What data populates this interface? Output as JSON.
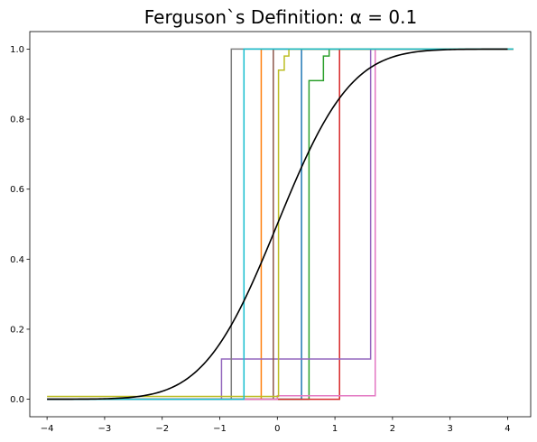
{
  "chart_data": {
    "type": "line",
    "title": "Ferguson`s Definition: α = 0.1",
    "xlabel": "",
    "ylabel": "",
    "xlim": [
      -4.3,
      4.4
    ],
    "ylim": [
      -0.05,
      1.05
    ],
    "x_ticks": [
      -4,
      -3,
      -2,
      -1,
      0,
      1,
      2,
      3,
      4
    ],
    "x_tick_labels": [
      "−4",
      "−3",
      "−2",
      "−1",
      "0",
      "1",
      "2",
      "3",
      "4"
    ],
    "y_ticks": [
      0.0,
      0.2,
      0.4,
      0.6,
      0.8,
      1.0
    ],
    "y_tick_labels": [
      "0.0",
      "0.2",
      "0.4",
      "0.6",
      "0.8",
      "1.0"
    ],
    "grid": false,
    "series": [
      {
        "color": "#1f77b4",
        "x": [
          -4,
          0.42,
          0.42,
          4.1
        ],
        "y": [
          0,
          0,
          1,
          1
        ]
      },
      {
        "color": "#ff7f0e",
        "x": [
          -4,
          -0.28,
          -0.28,
          4.1
        ],
        "y": [
          0,
          0,
          1,
          1
        ]
      },
      {
        "color": "#2ca02c",
        "x": [
          -4,
          0.55,
          0.55,
          0.8,
          0.8,
          0.9,
          0.9,
          4.1
        ],
        "y": [
          0,
          0,
          0.91,
          0.91,
          0.98,
          0.98,
          1,
          1
        ]
      },
      {
        "color": "#d62728",
        "x": [
          -4,
          1.08,
          1.08,
          4.1
        ],
        "y": [
          0,
          0,
          1,
          1
        ]
      },
      {
        "color": "#9467bd",
        "x": [
          -4,
          -0.97,
          -0.97,
          1.62,
          1.62,
          4.1
        ],
        "y": [
          0,
          0,
          0.115,
          0.115,
          1,
          1
        ]
      },
      {
        "color": "#8c564b",
        "x": [
          -4,
          -0.07,
          -0.07,
          4.1
        ],
        "y": [
          0,
          0,
          1,
          1
        ]
      },
      {
        "color": "#e377c2",
        "x": [
          -4,
          0.0,
          0.0,
          1.7,
          1.7,
          4.1
        ],
        "y": [
          0,
          0,
          0.01,
          0.01,
          1,
          1
        ]
      },
      {
        "color": "#7f7f7f",
        "x": [
          -4,
          -0.8,
          -0.8,
          4.1
        ],
        "y": [
          0,
          0,
          1,
          1
        ]
      },
      {
        "color": "#bcbd22",
        "x": [
          -4,
          0.02,
          0.02,
          0.12,
          0.12,
          0.2,
          0.2,
          4.1
        ],
        "y": [
          0.008,
          0.008,
          0.94,
          0.94,
          0.98,
          0.98,
          1,
          1
        ]
      },
      {
        "color": "#17becf",
        "x": [
          -4,
          -0.58,
          -0.58,
          4.1
        ],
        "y": [
          0,
          0,
          1,
          1
        ]
      },
      {
        "color": "#000000",
        "function": "normal_cdf",
        "x_range": [
          -4,
          4
        ]
      }
    ]
  }
}
